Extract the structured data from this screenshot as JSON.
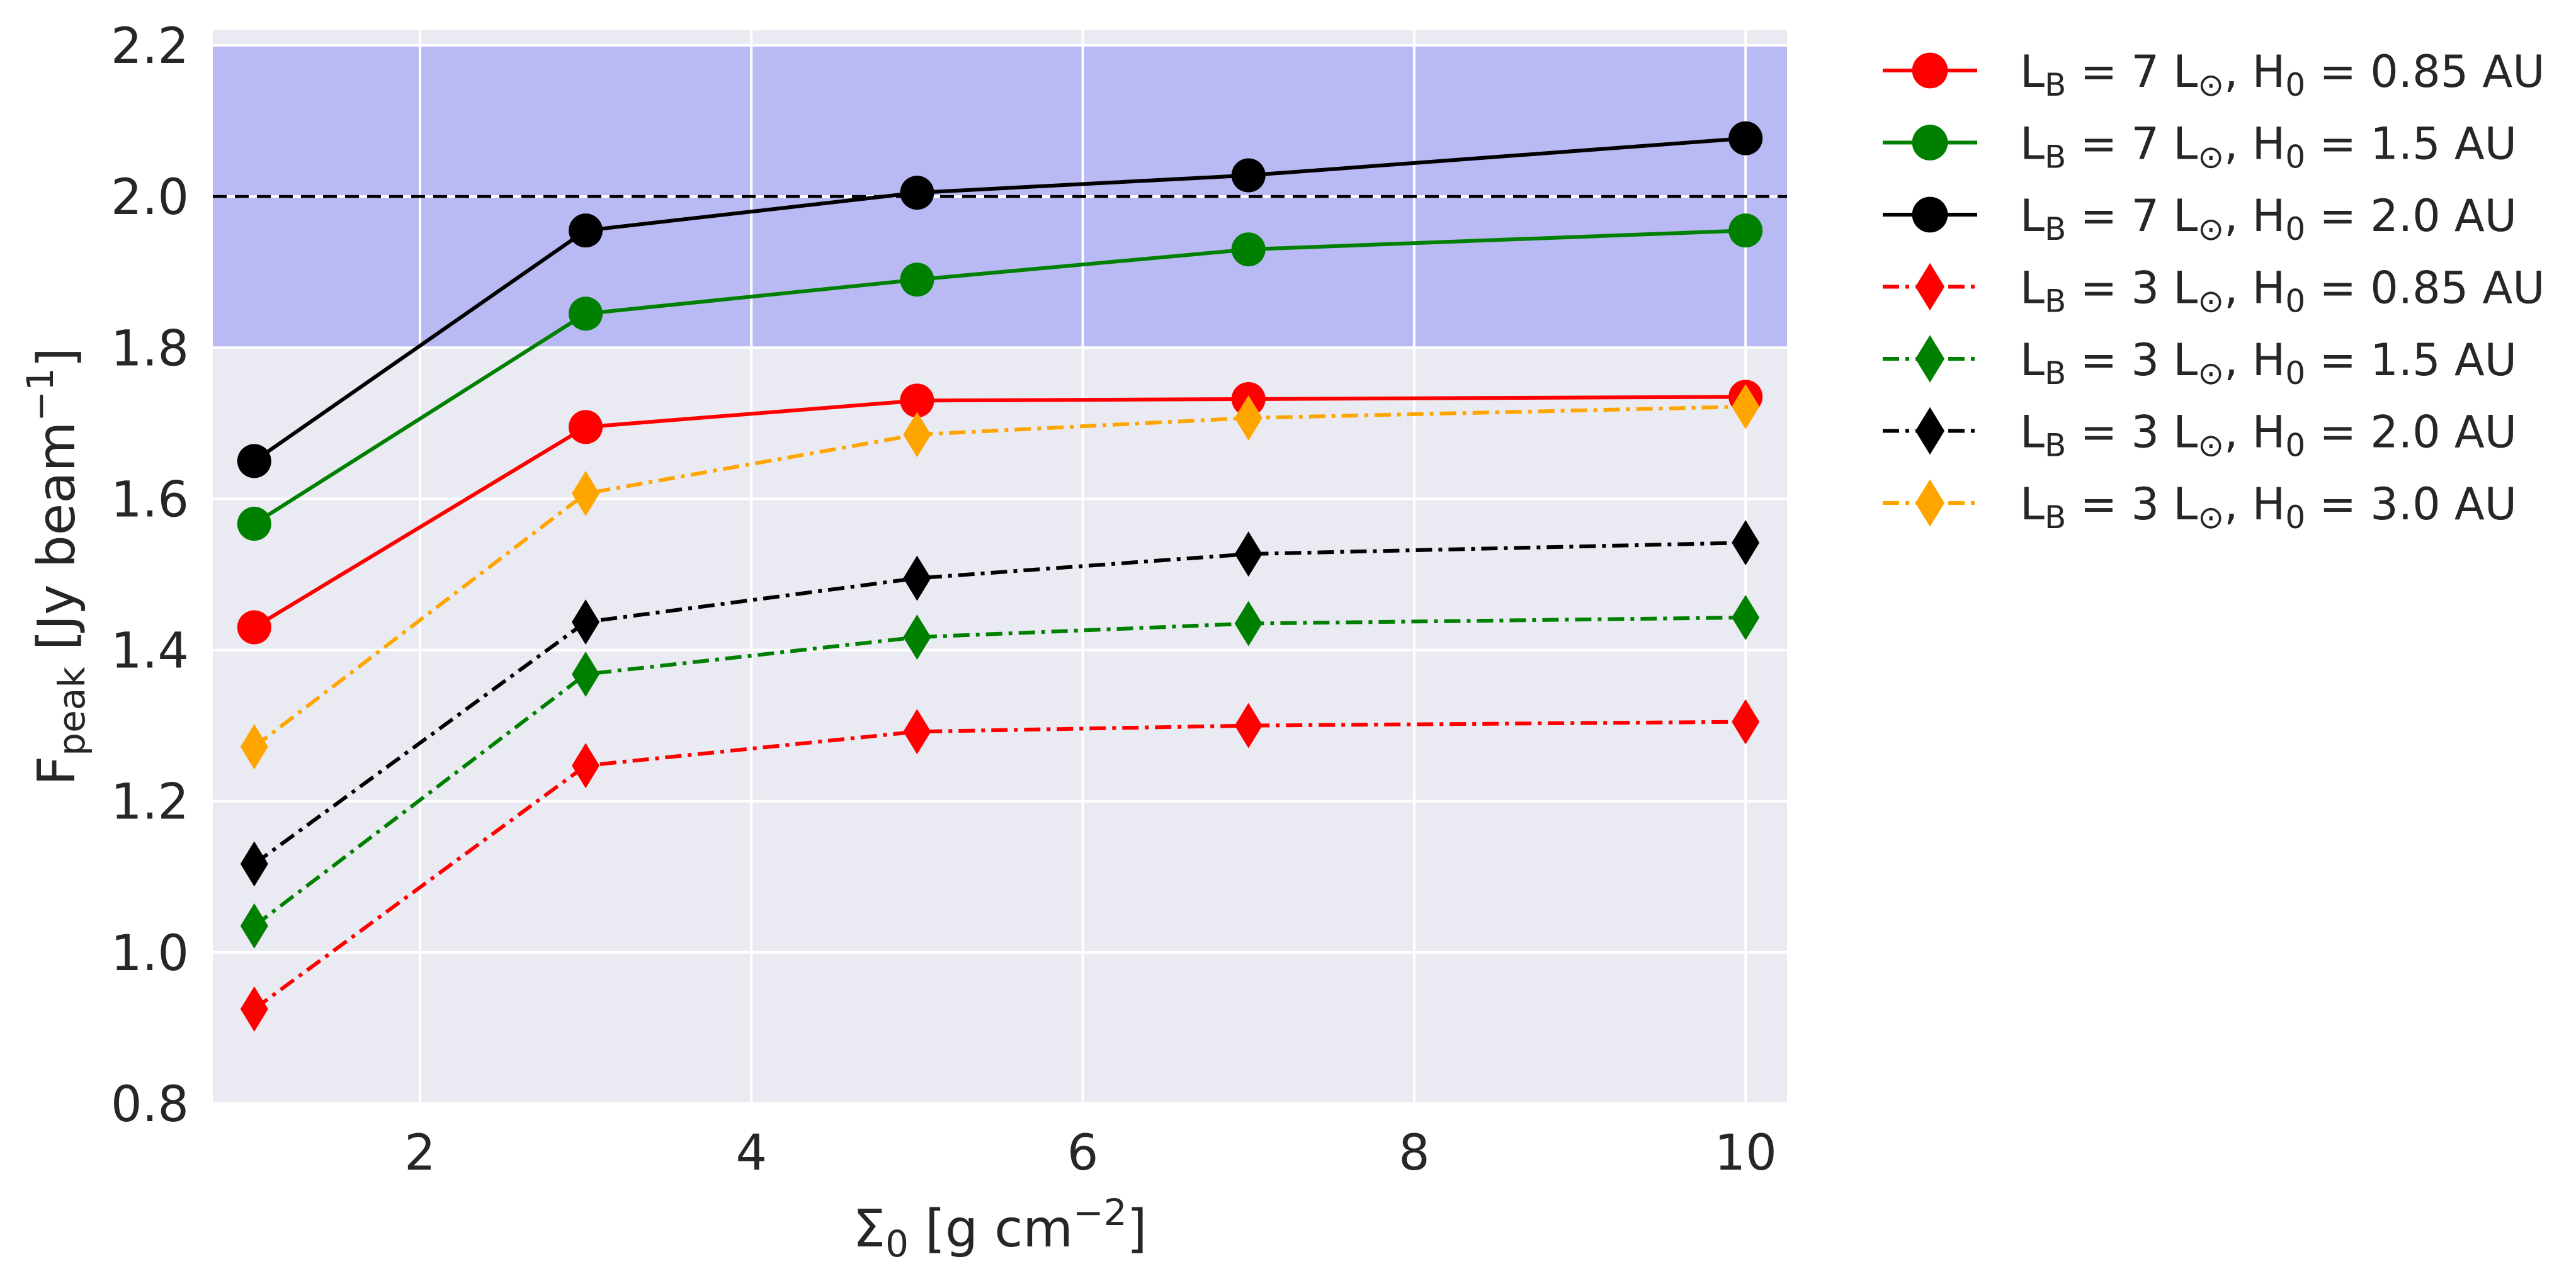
{
  "chart_data": {
    "type": "line",
    "title": "",
    "xlabel": {
      "main": "Σ",
      "sub": "0",
      "rest": " [g cm",
      "sup": "−2",
      "close": "]"
    },
    "ylabel": {
      "main": "F",
      "sub": "peak",
      "rest": " [Jy beam",
      "sup": "−1",
      "close": "]"
    },
    "xlim": [
      0.75,
      10.25
    ],
    "ylim": [
      0.8,
      2.22
    ],
    "xticks": [
      2,
      4,
      6,
      8,
      10
    ],
    "xtick_labels": [
      "2",
      "4",
      "6",
      "8",
      "10"
    ],
    "yticks": [
      0.8,
      1.0,
      1.2,
      1.4,
      1.6,
      1.8,
      2.0,
      2.2
    ],
    "ytick_labels": [
      "0.8",
      "1.0",
      "1.2",
      "1.4",
      "1.6",
      "1.8",
      "2.0",
      "2.2"
    ],
    "grid": true,
    "legend_position": "outside-right",
    "shaded_band": {
      "y0": 1.8,
      "y1": 2.2,
      "color": "#b9b9f3"
    },
    "reference_line": {
      "y": 2.0,
      "color": "#000000",
      "style": "dashed"
    },
    "x": [
      1,
      3,
      5,
      7,
      10
    ],
    "series": [
      {
        "name": "L_B = 7 L_⊙, H_0 = 0.85 AU",
        "L": "7",
        "H": "0.85",
        "color": "#ff0000",
        "marker": "circle",
        "linestyle": "solid",
        "values": [
          1.43,
          1.695,
          1.73,
          1.732,
          1.735
        ]
      },
      {
        "name": "L_B = 7 L_⊙, H_0 = 1.5 AU",
        "L": "7",
        "H": "1.5",
        "color": "#008000",
        "marker": "circle",
        "linestyle": "solid",
        "values": [
          1.567,
          1.845,
          1.89,
          1.93,
          1.955
        ]
      },
      {
        "name": "L_B = 7 L_⊙, H_0 = 2.0 AU",
        "L": "7",
        "H": "2.0",
        "color": "#000000",
        "marker": "circle",
        "linestyle": "solid",
        "values": [
          1.65,
          1.955,
          2.005,
          2.028,
          2.077
        ]
      },
      {
        "name": "L_B = 3 L_⊙, H_0 = 0.85 AU",
        "L": "3",
        "H": "0.85",
        "color": "#ff0000",
        "marker": "diamond",
        "linestyle": "dashdot",
        "values": [
          0.925,
          1.247,
          1.292,
          1.3,
          1.305
        ]
      },
      {
        "name": "L_B = 3 L_⊙, H_0 = 1.5 AU",
        "L": "3",
        "H": "1.5",
        "color": "#008000",
        "marker": "diamond",
        "linestyle": "dashdot",
        "values": [
          1.035,
          1.368,
          1.417,
          1.435,
          1.443
        ]
      },
      {
        "name": "L_B = 3 L_⊙, H_0 = 2.0 AU",
        "L": "3",
        "H": "2.0",
        "color": "#000000",
        "marker": "diamond",
        "linestyle": "dashdot",
        "values": [
          1.117,
          1.437,
          1.495,
          1.527,
          1.542
        ]
      },
      {
        "name": "L_B = 3 L_⊙, H_0 = 3.0 AU",
        "L": "3",
        "H": "3.0",
        "color": "#ffa500",
        "marker": "diamond",
        "linestyle": "dashdot",
        "values": [
          1.272,
          1.607,
          1.685,
          1.707,
          1.722
        ]
      }
    ]
  }
}
